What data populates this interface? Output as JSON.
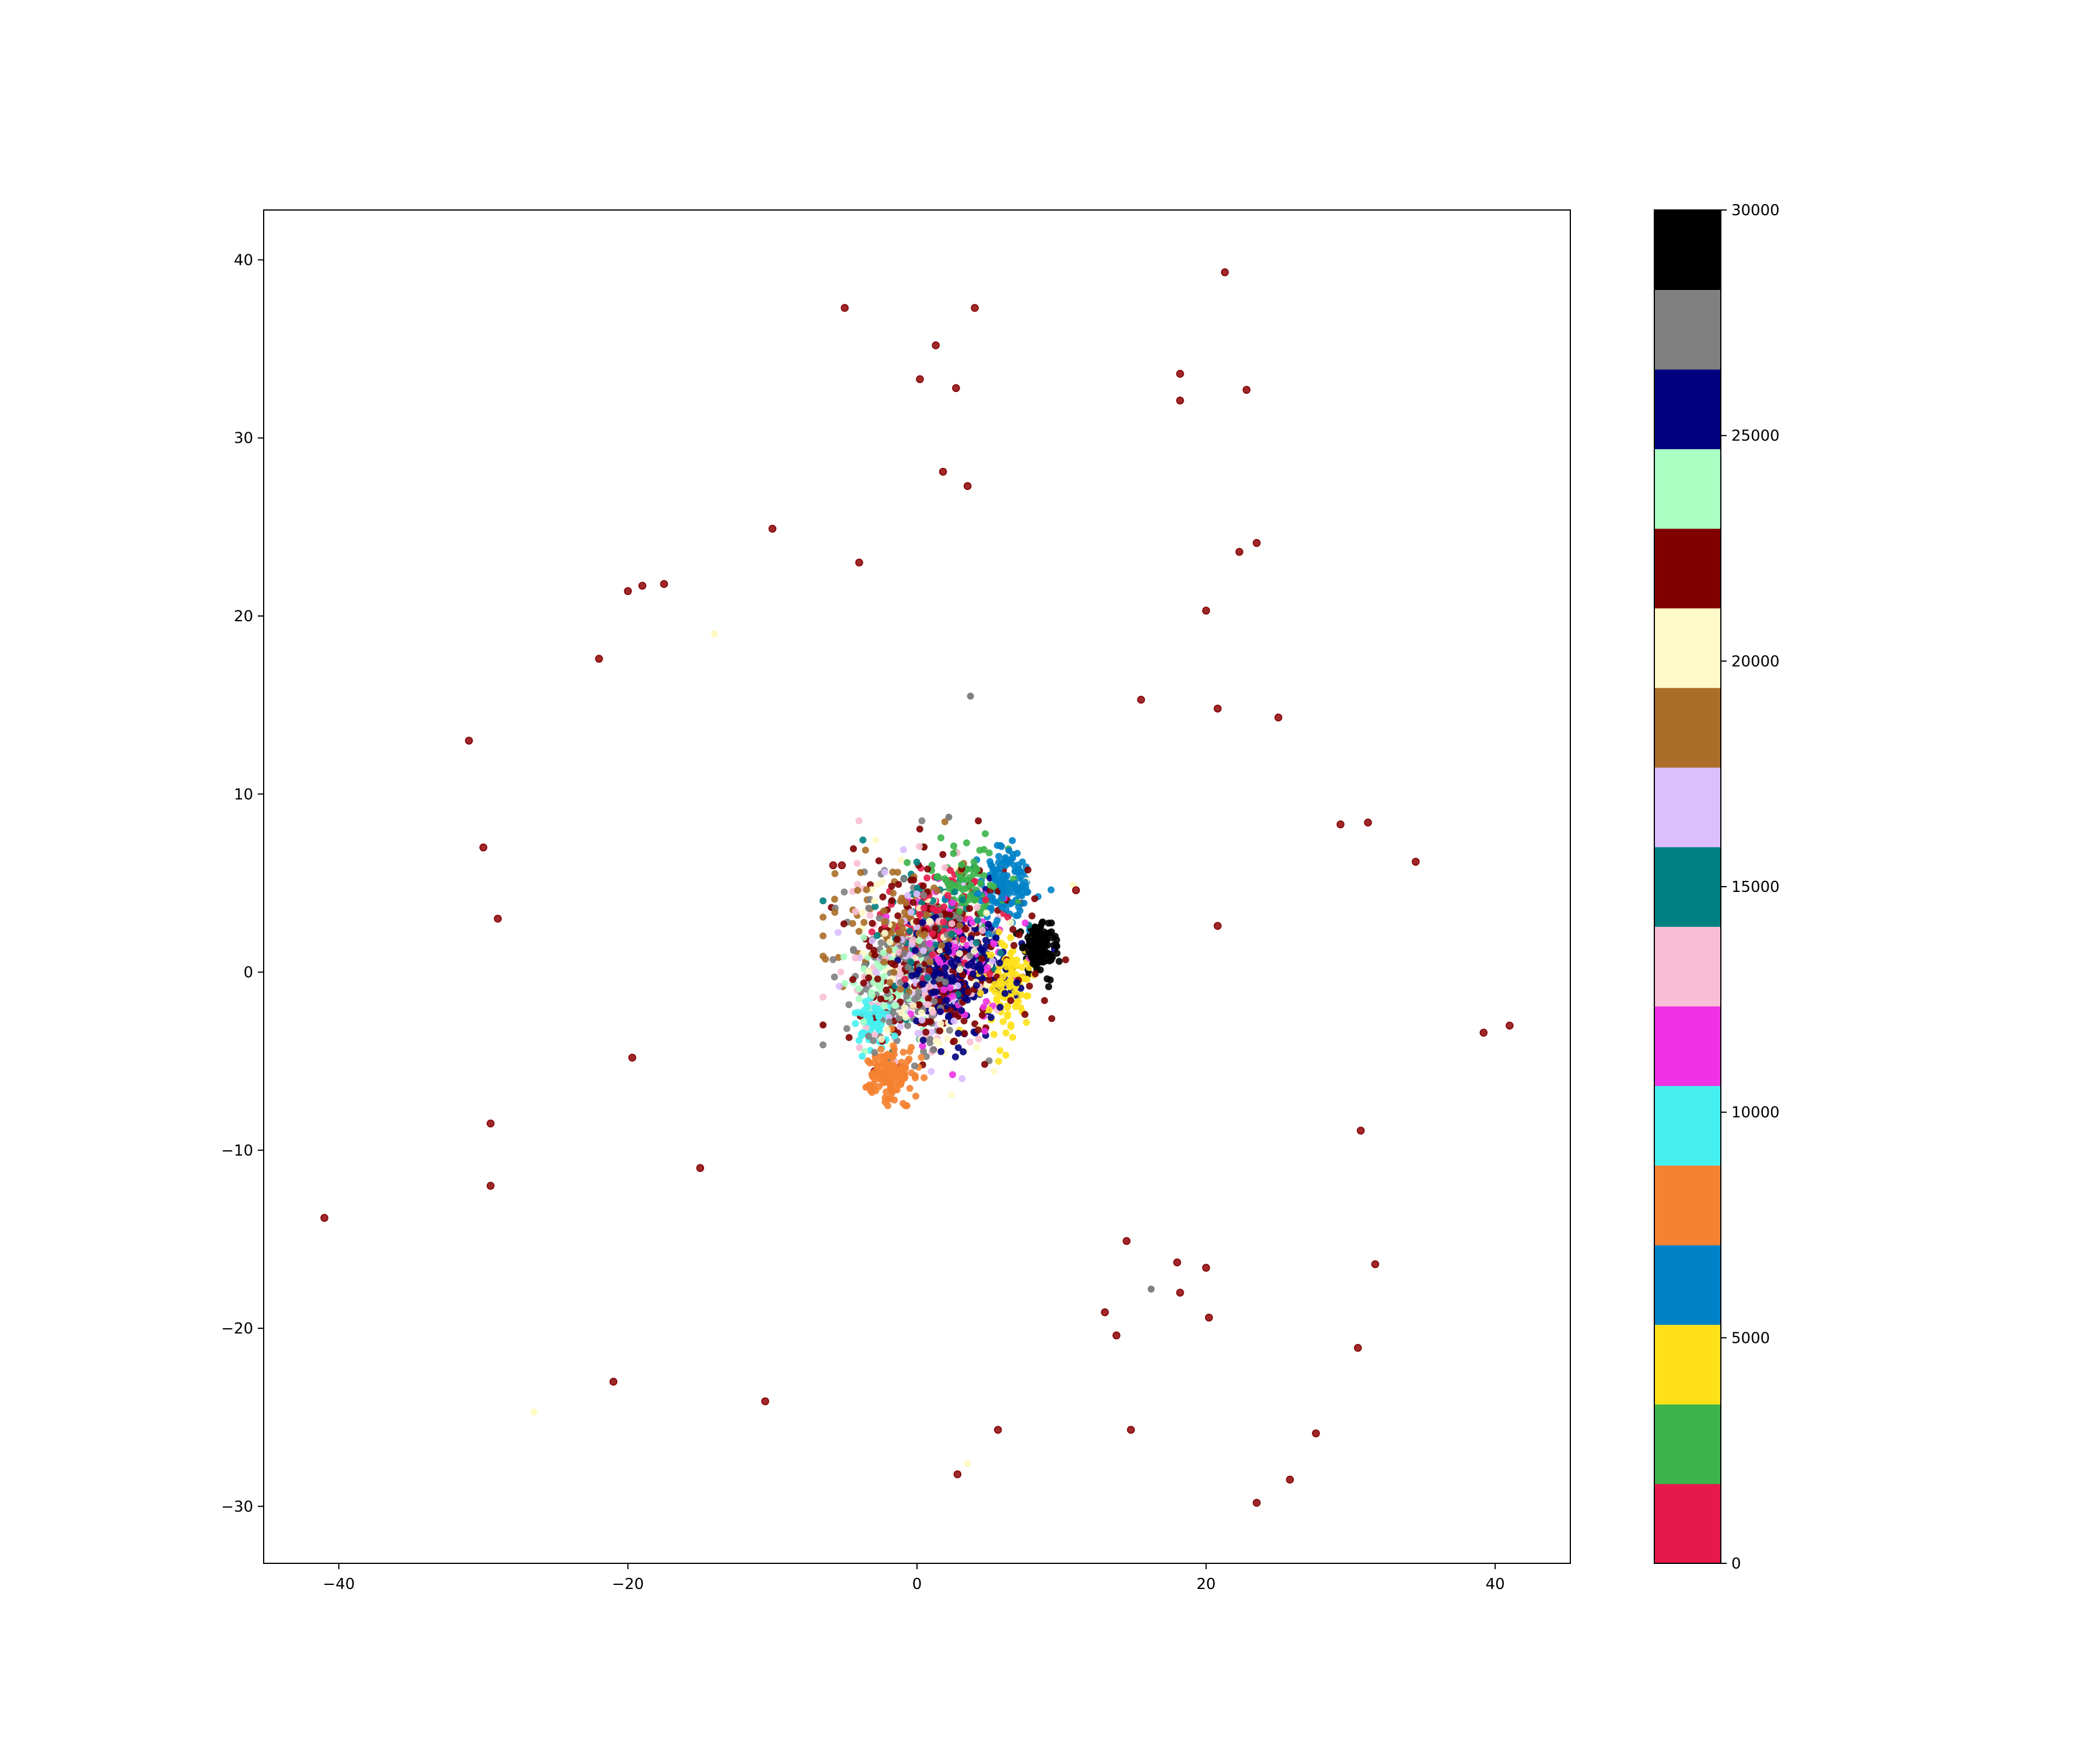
{
  "chart_data": {
    "type": "scatter",
    "title": "",
    "xlabel": "",
    "ylabel": "",
    "xlim": [
      -45.2,
      45.2
    ],
    "ylim": [
      -33.2,
      42.8
    ],
    "xticks": [
      -40,
      -20,
      0,
      20,
      40
    ],
    "xtick_labels": [
      "−40",
      "−20",
      "0",
      "20",
      "40"
    ],
    "yticks": [
      -30,
      -20,
      -10,
      0,
      10,
      20,
      30,
      40
    ],
    "ytick_labels": [
      "−30",
      "−20",
      "−10",
      "0",
      "10",
      "20",
      "30",
      "40"
    ],
    "grid": false,
    "legend": "none",
    "outlier_color": "#800000",
    "outliers": [
      [
        -41,
        -13.8
      ],
      [
        -31,
        13
      ],
      [
        -30,
        7
      ],
      [
        -29,
        3
      ],
      [
        -29.5,
        -8.5
      ],
      [
        -29.5,
        -12
      ],
      [
        -22,
        17.6
      ],
      [
        -20,
        21.4
      ],
      [
        -19,
        21.7
      ],
      [
        -17.5,
        21.8
      ],
      [
        -19.7,
        -4.8
      ],
      [
        -21,
        -23
      ],
      [
        -15,
        -11
      ],
      [
        -10.5,
        -24.1
      ],
      [
        -10,
        24.9
      ],
      [
        -5,
        37.3
      ],
      [
        -4,
        23
      ],
      [
        0.2,
        33.3
      ],
      [
        1.3,
        35.2
      ],
      [
        2.7,
        32.8
      ],
      [
        1.8,
        28.1
      ],
      [
        3.5,
        27.3
      ],
      [
        4,
        37.3
      ],
      [
        2.8,
        -28.2
      ],
      [
        5.6,
        -25.7
      ],
      [
        11,
        4.6
      ],
      [
        15.5,
        15.3
      ],
      [
        18.2,
        33.6
      ],
      [
        18.2,
        32.1
      ],
      [
        21.3,
        39.3
      ],
      [
        22.8,
        32.7
      ],
      [
        22.3,
        23.6
      ],
      [
        23.5,
        24.1
      ],
      [
        20,
        20.3
      ],
      [
        20.8,
        14.8
      ],
      [
        25,
        14.3
      ],
      [
        20.8,
        2.6
      ],
      [
        29.3,
        8.3
      ],
      [
        31.2,
        8.4
      ],
      [
        34.5,
        6.2
      ],
      [
        39.2,
        -3.4
      ],
      [
        41,
        -3
      ],
      [
        30.7,
        -8.9
      ],
      [
        31.7,
        -16.4
      ],
      [
        14.5,
        -15.1
      ],
      [
        18,
        -16.3
      ],
      [
        20,
        -16.6
      ],
      [
        18.2,
        -18
      ],
      [
        13,
        -19.1
      ],
      [
        13.8,
        -20.4
      ],
      [
        20.2,
        -19.4
      ],
      [
        30.5,
        -21.1
      ],
      [
        14.8,
        -25.7
      ],
      [
        27.6,
        -25.9
      ],
      [
        25.8,
        -28.5
      ],
      [
        23.5,
        -29.8
      ],
      [
        -5.2,
        6
      ],
      [
        -5.8,
        6
      ]
    ],
    "faint_points": [
      {
        "x": -14,
        "y": 19,
        "color": "#fff9c4"
      },
      {
        "x": -26.5,
        "y": -24.7,
        "color": "#fff9c4"
      },
      {
        "x": 3.5,
        "y": -27.6,
        "color": "#fff9c4"
      },
      {
        "x": 10.8,
        "y": 4.9,
        "color": "#fff9c4"
      }
    ],
    "gray_points": [
      [
        3.7,
        15.5
      ],
      [
        16.2,
        -17.8
      ],
      [
        2.2,
        8.7
      ]
    ],
    "clusters": [
      {
        "color": "#e6194b",
        "cx": 1,
        "cy": 3,
        "sx": 2,
        "sy": 1.4,
        "n": 90
      },
      {
        "color": "#3cb44b",
        "cx": 3.5,
        "cy": 5,
        "sx": 1.2,
        "sy": 1,
        "n": 90
      },
      {
        "color": "#ffe119",
        "cx": 6,
        "cy": -0.8,
        "sx": 0.9,
        "sy": 1.6,
        "n": 110
      },
      {
        "color": "#0082c8",
        "cx": 6,
        "cy": 5,
        "sx": 1,
        "sy": 1,
        "n": 140
      },
      {
        "color": "#f58231",
        "cx": -2,
        "cy": -5.7,
        "sx": 0.9,
        "sy": 0.8,
        "n": 140
      },
      {
        "color": "#46f0f0",
        "cx": -3,
        "cy": -2.7,
        "sx": 0.7,
        "sy": 0.6,
        "n": 70
      },
      {
        "color": "#f032e6",
        "cx": 2.8,
        "cy": 0.7,
        "sx": 2.2,
        "sy": 2,
        "n": 90
      },
      {
        "color": "#fabed4",
        "cx": 0,
        "cy": 0.5,
        "sx": 2.6,
        "sy": 2.5,
        "n": 90
      },
      {
        "color": "#008080",
        "cx": 1.5,
        "cy": 2,
        "sx": 2.5,
        "sy": 2.2,
        "n": 90
      },
      {
        "color": "#dcbeff",
        "cx": 0.5,
        "cy": 0,
        "sx": 2.5,
        "sy": 2.5,
        "n": 90
      },
      {
        "color": "#aa6e28",
        "cx": -1,
        "cy": 3,
        "sx": 2.2,
        "sy": 1.6,
        "n": 100
      },
      {
        "color": "#fffac8",
        "cx": 1,
        "cy": 0,
        "sx": 2.6,
        "sy": 2.6,
        "n": 110
      },
      {
        "color": "#800000",
        "cx": 1.5,
        "cy": 0.5,
        "sx": 2.8,
        "sy": 3,
        "n": 260
      },
      {
        "color": "#aaffc3",
        "cx": -2,
        "cy": -1,
        "sx": 1.6,
        "sy": 1.6,
        "n": 70
      },
      {
        "color": "#000080",
        "cx": 3,
        "cy": 0,
        "sx": 1.7,
        "sy": 1.6,
        "n": 230
      },
      {
        "color": "#808080",
        "cx": -0.5,
        "cy": 0,
        "sx": 2.3,
        "sy": 2.4,
        "n": 170
      },
      {
        "color": "#000000",
        "cx": 8.5,
        "cy": 1.5,
        "sx": 0.55,
        "sy": 0.75,
        "n": 130
      }
    ]
  },
  "colorbar": {
    "min": 0,
    "max": 30000,
    "ticks": [
      0,
      5000,
      10000,
      15000,
      20000,
      25000,
      30000
    ],
    "tick_labels": [
      "0",
      "5000",
      "10000",
      "15000",
      "20000",
      "25000",
      "30000"
    ],
    "colors": [
      "#e6194b",
      "#3cb44b",
      "#ffe119",
      "#0082c8",
      "#f58231",
      "#46f0f0",
      "#f032e6",
      "#fabed4",
      "#008080",
      "#dcbeff",
      "#aa6e28",
      "#fffac8",
      "#800000",
      "#aaffc3",
      "#000080",
      "#808080",
      "#000000"
    ]
  }
}
